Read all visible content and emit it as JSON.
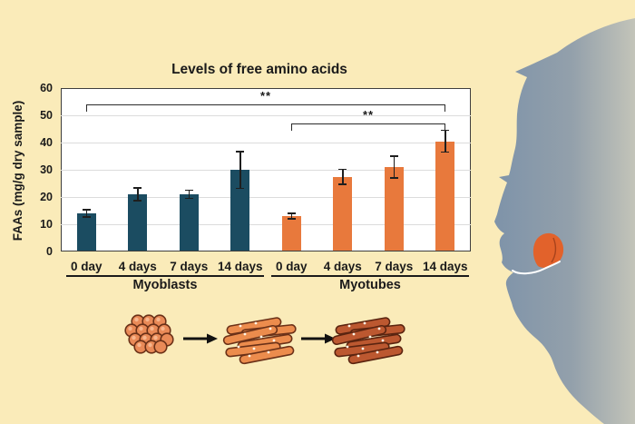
{
  "figure": {
    "background_color": "#FAEBB9",
    "text_color": "#1A1A1A",
    "head": {
      "icon": "head-profile-silhouette-icon",
      "gradient_start": "#7E93A9",
      "gradient_mid": "#93A0AB",
      "gradient_end": "#C3C4B9",
      "tongue_color": "#E2622B",
      "tongue_line_color": "#A8431C",
      "mouth_line_color": "#FFFFFF"
    },
    "process_diagram": {
      "stages": [
        {
          "icon": "myoblast-cluster-icon",
          "fill": "#E98A57",
          "outline": "#6B3118",
          "highlight": "#F7B68E"
        },
        {
          "icon": "arrow-right-icon",
          "color": "#111111"
        },
        {
          "icon": "myotube-bundle-icon",
          "fill": "#EC8C4D",
          "outline": "#6B3118",
          "dot": "#FFF6E8"
        },
        {
          "icon": "arrow-right-icon",
          "color": "#111111"
        },
        {
          "icon": "muscle-fiber-bundle-icon",
          "fill": "#BC5830",
          "outline": "#5A2410",
          "dot": "#FFF6E8"
        }
      ]
    }
  },
  "chart_data": {
    "type": "bar",
    "title": "Levels of free amino acids",
    "ylabel": "FAAs (mg/g dry sample)",
    "xlabel": "",
    "ylim": [
      0,
      60
    ],
    "yticks": [
      0,
      10,
      20,
      30,
      40,
      50,
      60
    ],
    "grid": true,
    "legend": "none",
    "groups": [
      {
        "label": "Myoblasts",
        "color": "#1B4C61",
        "categories": [
          "0 day",
          "4 days",
          "7 days",
          "14 days"
        ],
        "values": [
          14,
          21,
          21,
          30
        ],
        "errors": [
          1.6,
          2.6,
          1.8,
          7
        ]
      },
      {
        "label": "Myotubes",
        "color": "#E8793C",
        "categories": [
          "0 day",
          "4 days",
          "7 days",
          "14 days"
        ],
        "values": [
          13,
          27.5,
          31,
          40.5
        ],
        "errors": [
          1.3,
          3,
          4.2,
          4.2
        ]
      }
    ],
    "significance_brackets": [
      {
        "from_bar": 0,
        "to_bar": 7,
        "label": "**",
        "height_value": 54
      },
      {
        "from_bar": 4,
        "to_bar": 7,
        "label": "**",
        "height_value": 47
      }
    ]
  }
}
